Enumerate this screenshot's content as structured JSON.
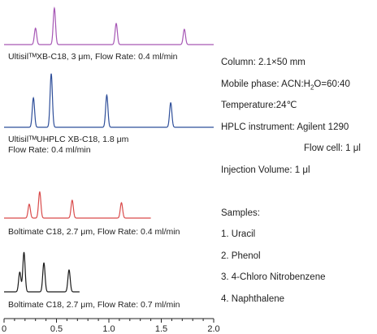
{
  "chart_data": {
    "type": "line",
    "xlim": [
      0,
      2.0
    ],
    "x_ticks": [
      "0",
      "0.5",
      "1.0",
      "1.5",
      "2.0"
    ],
    "xlabel": "",
    "ylabel": "",
    "grid": false,
    "traces": [
      {
        "caption_lines": [
          "UltisilᵀᴹXB-C18, 3 μm, Flow Rate:  0.4 ml/min"
        ],
        "color": "#a657b5",
        "x_end": 2.0,
        "peaks": [
          {
            "x": 0.3,
            "height": 0.45
          },
          {
            "x": 0.48,
            "height": 1.0
          },
          {
            "x": 1.07,
            "height": 0.58
          },
          {
            "x": 1.72,
            "height": 0.42
          }
        ]
      },
      {
        "caption_lines": [
          "UltisilᵀᴹUHPLC  XB-C18, 1.8 μm",
          "Flow Rate:  0.4 ml/min"
        ],
        "color": "#2f4f9a",
        "x_end": 2.0,
        "peaks": [
          {
            "x": 0.28,
            "height": 0.55
          },
          {
            "x": 0.45,
            "height": 1.0
          },
          {
            "x": 0.98,
            "height": 0.6
          },
          {
            "x": 1.59,
            "height": 0.46
          }
        ]
      },
      {
        "caption_lines": [
          "Boltimate C18, 2.7 μm, Flow Rate:  0.4 ml/min"
        ],
        "color": "#d94b4b",
        "x_end": 1.4,
        "peaks": [
          {
            "x": 0.24,
            "height": 0.45
          },
          {
            "x": 0.34,
            "height": 0.85
          },
          {
            "x": 0.65,
            "height": 0.58
          },
          {
            "x": 1.12,
            "height": 0.5
          }
        ]
      },
      {
        "caption_lines": [
          "Boltimate C18, 2.7 μm, Flow Rate:  0.7 ml/min"
        ],
        "color": "#1a1a1a",
        "x_end": 0.72,
        "peaks": [
          {
            "x": 0.15,
            "height": 0.45
          },
          {
            "x": 0.19,
            "height": 0.9
          },
          {
            "x": 0.38,
            "height": 0.66
          },
          {
            "x": 0.62,
            "height": 0.5
          }
        ]
      }
    ]
  },
  "conditions": {
    "column": "Column: 2.1×50 mm",
    "mobile_phase_prefix": "Mobile phase: ACN:H",
    "mobile_phase_sub": "2",
    "mobile_phase_suffix": "O=60:40",
    "temperature": "Temperature:24℃",
    "instrument": "HPLC instrument: Agilent 1290",
    "flow_cell": "Flow cell: 1 μl",
    "injection_volume": "Injection Volume: 1 μl"
  },
  "samples": {
    "heading": "Samples:",
    "items": [
      "1.   Uracil",
      "2.   Phenol",
      "3.   4-Chloro Nitrobenzene",
      "4.   Naphthalene"
    ]
  }
}
